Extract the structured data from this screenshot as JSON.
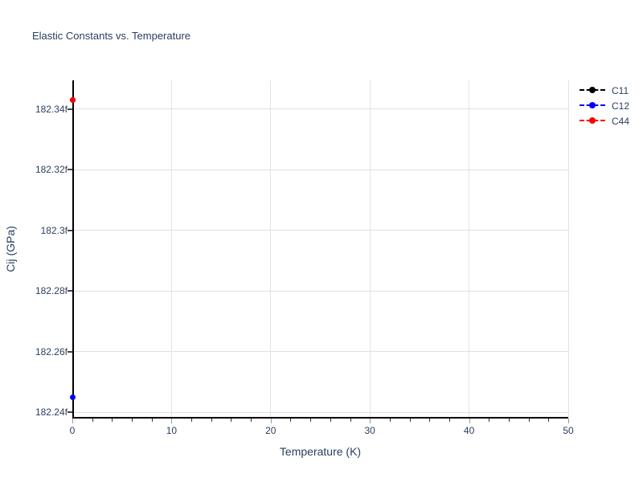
{
  "title": "Elastic Constants vs. Temperature",
  "colors": {
    "text": "#2a3f5f",
    "grid": "#e0e0e0",
    "axis_line": "#000000",
    "background": "#ffffff"
  },
  "legend": {
    "items": [
      {
        "label": "C11",
        "color": "#000000"
      },
      {
        "label": "C12",
        "color": "#0000ff"
      },
      {
        "label": "C44",
        "color": "#ff0000"
      }
    ]
  },
  "chart_data": {
    "type": "scatter",
    "title": "Elastic Constants vs. Temperature",
    "xlabel": "Temperature (K)",
    "ylabel": "Cij (GPa)",
    "xlim": [
      0,
      50
    ],
    "ylim": [
      182.238,
      182.3495
    ],
    "x_major_ticks": [
      0,
      10,
      20,
      30,
      40,
      50
    ],
    "x_tick_labels": [
      "0",
      "10",
      "20",
      "30",
      "40",
      "50"
    ],
    "x_minor_step": 2,
    "y_ticks": [
      182.24,
      182.26,
      182.28,
      182.3,
      182.32,
      182.34
    ],
    "y_tick_labels": [
      "182.24f",
      "182.26f",
      "182.28f",
      "182.3f",
      "182.32f",
      "182.34f"
    ],
    "grid": true,
    "legend_position": "outside-top-right",
    "marker_style": "circle",
    "line_style": "dash",
    "series": [
      {
        "name": "C11",
        "color": "#000000",
        "points": [
          {
            "x": 0,
            "y": 182.343
          }
        ]
      },
      {
        "name": "C12",
        "color": "#0000ff",
        "points": [
          {
            "x": 0,
            "y": 182.245
          }
        ]
      },
      {
        "name": "C44",
        "color": "#ff0000",
        "points": [
          {
            "x": 0,
            "y": 182.343
          }
        ]
      }
    ]
  }
}
